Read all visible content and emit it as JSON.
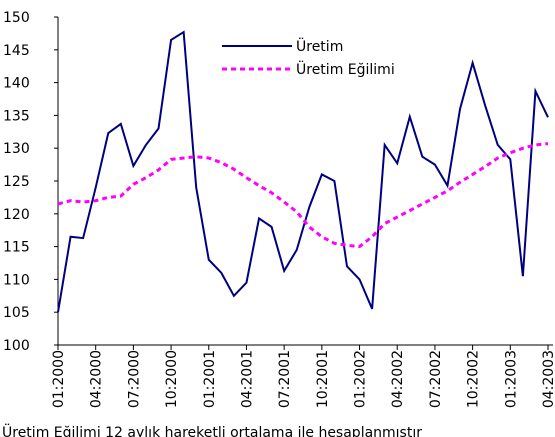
{
  "chart_data": {
    "type": "line",
    "categories": [
      "01:2000",
      null,
      null,
      "04:2000",
      null,
      null,
      "07:2000",
      null,
      null,
      "10:2000",
      null,
      null,
      "01:2001",
      null,
      null,
      "04:2001",
      null,
      null,
      "07:2001",
      null,
      null,
      "10:2001",
      null,
      null,
      "01:2002",
      null,
      null,
      "04:2002",
      null,
      null,
      "07:2002",
      null,
      null,
      "10:2002",
      null,
      null,
      "01:2003",
      null,
      null,
      "04:2003"
    ],
    "series": [
      {
        "name": "Üretim",
        "color": "#000080",
        "linestyle": "solid",
        "values": [
          105,
          116.5,
          116.3,
          124,
          132.3,
          133.7,
          127.3,
          130.5,
          133,
          146.5,
          147.7,
          124,
          113,
          111,
          107.5,
          109.5,
          119.3,
          118,
          111.3,
          114.5,
          121,
          126,
          125,
          112,
          110,
          105.5,
          130.5,
          127.7,
          134.8,
          128.7,
          127.5,
          124.3,
          136,
          143,
          136.5,
          130.5,
          128.3,
          110.5,
          138.7,
          134.7
        ]
      },
      {
        "name": "Üretim Eğilimi",
        "color": "#ff00ff",
        "linestyle": "dashed",
        "values": [
          121.5,
          122,
          121.8,
          122,
          122.5,
          122.7,
          124.5,
          125.5,
          126.7,
          128.3,
          128.5,
          128.7,
          128.5,
          127.8,
          126.8,
          125.5,
          124.3,
          123.2,
          121.8,
          120.3,
          118,
          116.5,
          115.5,
          115.2,
          115,
          116.5,
          118.5,
          119.5,
          120.5,
          121.5,
          122.5,
          123.5,
          124.8,
          126,
          127.2,
          128.5,
          129.3,
          130,
          130.5,
          130.7
        ]
      }
    ],
    "ylim": [
      100,
      150
    ],
    "yticks": [
      100,
      105,
      110,
      115,
      120,
      125,
      130,
      135,
      140,
      145,
      150
    ],
    "note": "Üretim Eğilimi 12 aylık hareketli ortalama ile hesaplanmıştır"
  }
}
